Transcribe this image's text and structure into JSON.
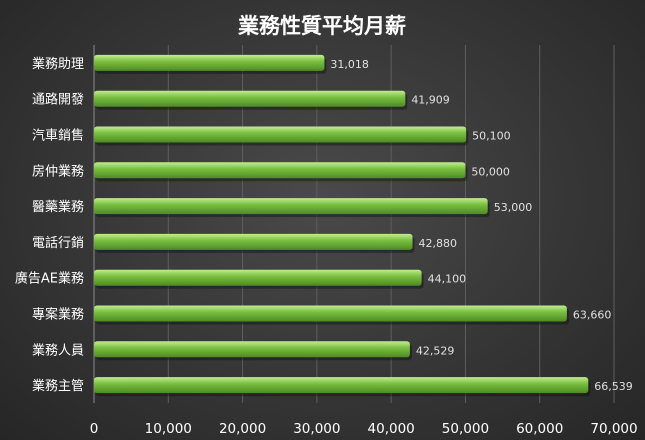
{
  "chart_data": {
    "type": "bar",
    "orientation": "horizontal",
    "title": "業務性質平均月薪",
    "categories": [
      "業務助理",
      "通路開發",
      "汽車銷售",
      "房仲業務",
      "醫藥業務",
      "電話行銷",
      "廣告AE業務",
      "專案業務",
      "業務人員",
      "業務主管"
    ],
    "values": [
      31018,
      41909,
      50100,
      50000,
      53000,
      42880,
      44100,
      63660,
      42529,
      66539
    ],
    "value_labels": [
      "31,018",
      "41,909",
      "50,100",
      "50,000",
      "53,000",
      "42,880",
      "44,100",
      "63,660",
      "42,529",
      "66,539"
    ],
    "xlim": [
      0,
      70000
    ],
    "ticks": [
      0,
      10000,
      20000,
      30000,
      40000,
      50000,
      60000,
      70000
    ],
    "tick_labels": [
      "0",
      "10,000",
      "20,000",
      "30,000",
      "40,000",
      "50,000",
      "60,000",
      "70,000"
    ],
    "xlabel": "",
    "ylabel": "",
    "grid": true,
    "legend": "none",
    "bar_color": "#7ac142",
    "bar_highlight": "#c4ec90",
    "bar_shadow": "#4e8a22",
    "background": "#383838",
    "text_color": "#ffffff"
  }
}
